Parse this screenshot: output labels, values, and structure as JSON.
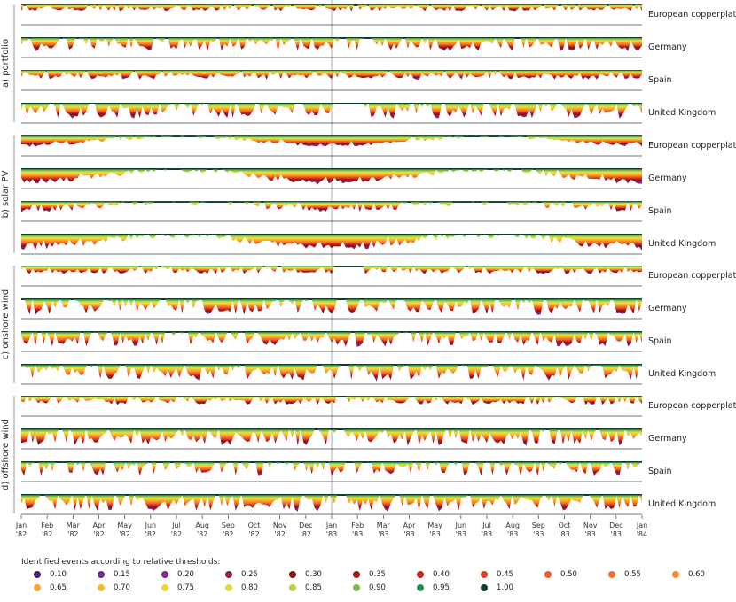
{
  "chart_data": {
    "type": "area",
    "description_note": "",
    "panels": [
      {
        "label": "a) portfolio",
        "rows": [
          {
            "name": "European copperplate",
            "depth": 0.38,
            "level": 0.55,
            "var": 0.7,
            "seed": 11,
            "gap": [
              0.535,
              0.545
            ]
          },
          {
            "name": "Germany",
            "depth": 0.85,
            "level": 0.45,
            "var": 0.8,
            "seed": 12,
            "gap": [
              0.51,
              0.525
            ]
          },
          {
            "name": "Spain",
            "depth": 0.55,
            "level": 0.6,
            "var": 0.6,
            "seed": 13,
            "gap": null
          },
          {
            "name": "United Kingdom",
            "depth": 0.85,
            "level": 0.5,
            "var": 0.9,
            "seed": 14,
            "gap": [
              0.505,
              0.55
            ]
          }
        ]
      },
      {
        "label": "b) solar PV",
        "rows": [
          {
            "name": "European copperplate",
            "depth": 0.9,
            "level": 0.55,
            "var": 0.2,
            "seed": 21,
            "seasonal": true,
            "gap": null
          },
          {
            "name": "Germany",
            "depth": 0.95,
            "level": 0.75,
            "var": 0.3,
            "seed": 22,
            "seasonal": true,
            "gap": null
          },
          {
            "name": "Spain",
            "depth": 0.85,
            "level": 0.45,
            "var": 0.5,
            "seed": 23,
            "seasonal": true,
            "gap": null
          },
          {
            "name": "United Kingdom",
            "depth": 0.95,
            "level": 0.7,
            "var": 0.4,
            "seed": 24,
            "seasonal": true,
            "gap": null
          }
        ]
      },
      {
        "label": "c) onshore wind",
        "rows": [
          {
            "name": "European copperplate",
            "depth": 0.55,
            "level": 0.5,
            "var": 0.6,
            "seed": 31,
            "gap": [
              0.505,
              0.55
            ]
          },
          {
            "name": "Germany",
            "depth": 0.9,
            "level": 0.5,
            "var": 0.9,
            "seed": 32,
            "gap": [
              0.505,
              0.525
            ]
          },
          {
            "name": "Spain",
            "depth": 0.9,
            "level": 0.45,
            "var": 0.9,
            "seed": 33,
            "gap": null
          },
          {
            "name": "United Kingdom",
            "depth": 0.95,
            "level": 0.5,
            "var": 0.9,
            "seed": 34,
            "gap": [
              0.51,
              0.525
            ]
          }
        ]
      },
      {
        "label": "d) offshore wind",
        "rows": [
          {
            "name": "European copperplate",
            "depth": 0.6,
            "level": 0.45,
            "var": 0.7,
            "seed": 41,
            "gap": [
              0.505,
              0.525
            ]
          },
          {
            "name": "Germany",
            "depth": 0.95,
            "level": 0.5,
            "var": 0.9,
            "seed": 42,
            "gap": [
              0.505,
              0.52
            ]
          },
          {
            "name": "Spain",
            "depth": 0.95,
            "level": 0.3,
            "var": 1.0,
            "seed": 43,
            "gap": null
          },
          {
            "name": "United Kingdom",
            "depth": 0.95,
            "level": 0.5,
            "var": 0.9,
            "seed": 44,
            "gap": [
              0.505,
              0.525
            ]
          }
        ]
      }
    ],
    "x_ticks": [
      {
        "month": "Jan",
        "year": "'82"
      },
      {
        "month": "Feb",
        "year": "'82"
      },
      {
        "month": "Mar",
        "year": "'82"
      },
      {
        "month": "Apr",
        "year": "'82"
      },
      {
        "month": "May",
        "year": "'82"
      },
      {
        "month": "Jun",
        "year": "'82"
      },
      {
        "month": "Jul",
        "year": "'82"
      },
      {
        "month": "Aug",
        "year": "'82"
      },
      {
        "month": "Sep",
        "year": "'82"
      },
      {
        "month": "Oct",
        "year": "'82"
      },
      {
        "month": "Nov",
        "year": "'82"
      },
      {
        "month": "Dec",
        "year": "'82"
      },
      {
        "month": "Jan",
        "year": "'83"
      },
      {
        "month": "Feb",
        "year": "'83"
      },
      {
        "month": "Mar",
        "year": "'83"
      },
      {
        "month": "Apr",
        "year": "'83"
      },
      {
        "month": "May",
        "year": "'83"
      },
      {
        "month": "Jun",
        "year": "'83"
      },
      {
        "month": "Jul",
        "year": "'83"
      },
      {
        "month": "Aug",
        "year": "'83"
      },
      {
        "month": "Sep",
        "year": "'83"
      },
      {
        "month": "Oct",
        "year": "'83"
      },
      {
        "month": "Nov",
        "year": "'83"
      },
      {
        "month": "Dec",
        "year": "'83"
      },
      {
        "month": "Jan",
        "year": "'84"
      }
    ],
    "legend_title": "Identified events according to relative thresholds:",
    "thresholds": [
      {
        "label": "0.10",
        "color": "#4b1a7a"
      },
      {
        "label": "0.15",
        "color": "#6a2a8c"
      },
      {
        "label": "0.20",
        "color": "#7e2a90"
      },
      {
        "label": "0.25",
        "color": "#8e1a4e"
      },
      {
        "label": "0.30",
        "color": "#8b1116"
      },
      {
        "label": "0.35",
        "color": "#a01a16"
      },
      {
        "label": "0.40",
        "color": "#c0261c"
      },
      {
        "label": "0.45",
        "color": "#de3e22"
      },
      {
        "label": "0.50",
        "color": "#ec5a2a"
      },
      {
        "label": "0.55",
        "color": "#f27230"
      },
      {
        "label": "0.60",
        "color": "#f68a2e"
      },
      {
        "label": "0.65",
        "color": "#f6a330"
      },
      {
        "label": "0.70",
        "color": "#f5bd2e"
      },
      {
        "label": "0.75",
        "color": "#f2d43a"
      },
      {
        "label": "0.80",
        "color": "#dede3a"
      },
      {
        "label": "0.85",
        "color": "#b3d443"
      },
      {
        "label": "0.90",
        "color": "#7dbb4d"
      },
      {
        "label": "0.95",
        "color": "#2c8a55"
      },
      {
        "label": "1.00",
        "color": "#0f3d2a"
      }
    ]
  }
}
